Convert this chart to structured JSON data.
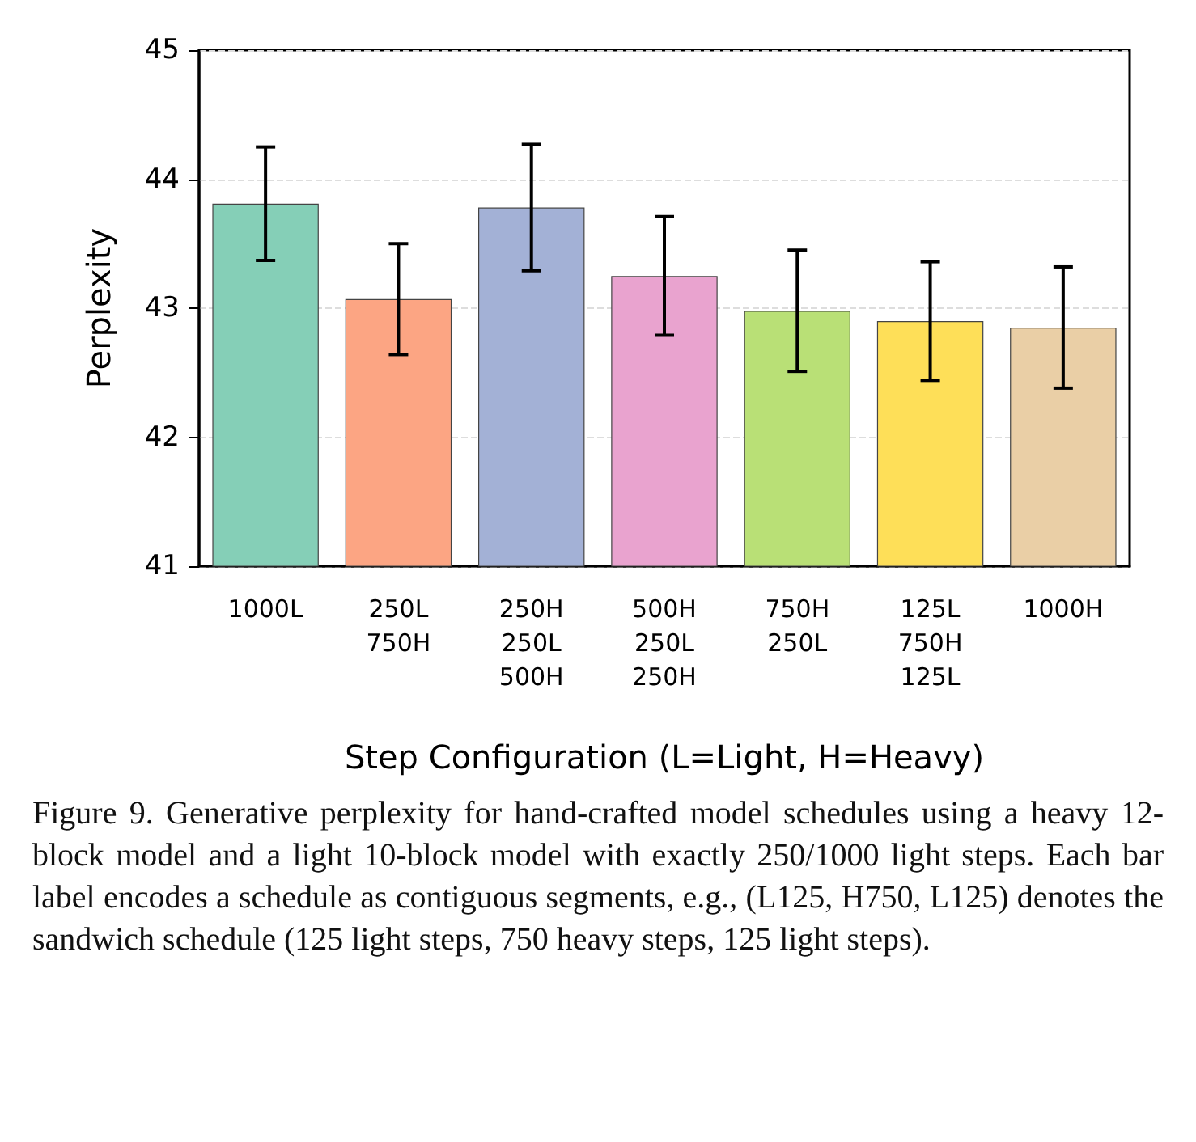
{
  "chart_data": {
    "type": "bar",
    "xlabel": "Step Configuration (L=Light, H=Heavy)",
    "ylabel": "Perplexity",
    "categories": [
      "1000L",
      "250L\n750H",
      "250H\n250L\n500H",
      "500H\n250L\n250H",
      "750H\n250L",
      "125L\n750H\n125L",
      "1000H"
    ],
    "values": [
      43.81,
      43.07,
      43.78,
      43.25,
      42.98,
      42.9,
      42.85
    ],
    "errors": [
      0.44,
      0.43,
      0.49,
      0.46,
      0.47,
      0.46,
      0.47
    ],
    "colors": [
      "#85cfb7",
      "#fca583",
      "#a3b1d6",
      "#e9a3cf",
      "#b9e076",
      "#fedf58",
      "#eacfa6"
    ],
    "ylim": [
      41,
      45
    ],
    "yticks": [
      41,
      42,
      43,
      44,
      45
    ],
    "grid": "y",
    "annotations": [
      "Figure 9. Generative perplexity for hand-crafted model schedules using a heavy 12-block model and a light 10-block model with exactly 250/1000 light steps. Each bar label encodes a schedule as contiguous segments, e.g., (L125, H750, L125) denotes the sandwich schedule (125 light steps, 750 heavy steps, 125 light steps)."
    ]
  }
}
